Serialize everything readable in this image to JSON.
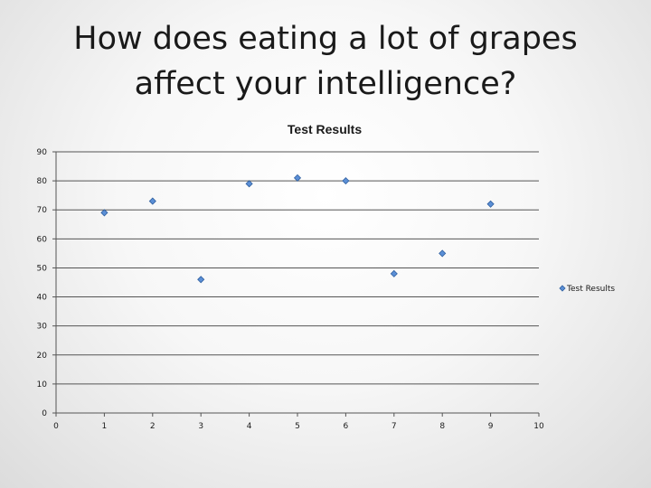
{
  "slide": {
    "title": "How does eating a lot of grapes affect your intelligence?"
  },
  "chart_data": {
    "type": "scatter",
    "title": "Test Results",
    "xlabel": "",
    "ylabel": "",
    "xlim": [
      0,
      10
    ],
    "ylim": [
      0,
      90
    ],
    "x_ticks": [
      0,
      1,
      2,
      3,
      4,
      5,
      6,
      7,
      8,
      9,
      10
    ],
    "y_ticks": [
      0,
      10,
      20,
      30,
      40,
      50,
      60,
      70,
      80,
      90
    ],
    "grid": "horizontal",
    "legend_position": "right",
    "series": [
      {
        "name": "Test Results",
        "color": "#5b8fd6",
        "marker": "diamond",
        "x": [
          1,
          2,
          3,
          4,
          5,
          6,
          7,
          8,
          9
        ],
        "y": [
          69,
          73,
          46,
          79,
          81,
          80,
          48,
          55,
          72
        ]
      }
    ]
  }
}
